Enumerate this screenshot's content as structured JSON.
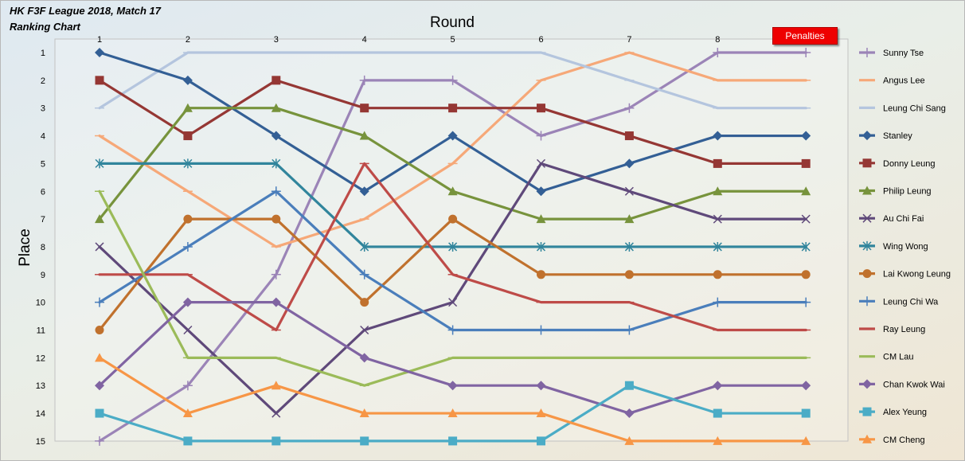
{
  "header": {
    "title": "HK F3F League 2018, Match 17",
    "subtitle": "Ranking Chart"
  },
  "penalties_label": "Penalties",
  "chart_data": {
    "type": "line",
    "xlabel": "Round",
    "ylabel": "Place",
    "x": [
      "1",
      "2",
      "3",
      "4",
      "5",
      "6",
      "7",
      "8",
      ""
    ],
    "xlim": [
      1,
      9
    ],
    "ylim": [
      15,
      1
    ],
    "y_ticks": [
      1,
      2,
      3,
      4,
      5,
      6,
      7,
      8,
      9,
      10,
      11,
      12,
      13,
      14,
      15
    ],
    "y_inverted": true,
    "grid": false,
    "legend_position": "right",
    "series": [
      {
        "name": "Sunny Tse",
        "color": "#9b84b7",
        "marker": "plus",
        "values": [
          15,
          13,
          9,
          2,
          2,
          4,
          3,
          1,
          1
        ]
      },
      {
        "name": "Angus Lee",
        "color": "#f6a878",
        "marker": "dash",
        "values": [
          4,
          6,
          8,
          7,
          5,
          2,
          1,
          2,
          2
        ]
      },
      {
        "name": "Leung Chi Sang",
        "color": "#b4c5de",
        "marker": "dash",
        "values": [
          3,
          1,
          1,
          1,
          1,
          1,
          2,
          3,
          3
        ]
      },
      {
        "name": "Stanley",
        "color": "#335f95",
        "marker": "diamond",
        "values": [
          1,
          2,
          4,
          6,
          4,
          6,
          5,
          4,
          4
        ]
      },
      {
        "name": "Donny Leung",
        "color": "#953734",
        "marker": "square",
        "values": [
          2,
          4,
          2,
          3,
          3,
          3,
          4,
          5,
          5
        ]
      },
      {
        "name": "Philip Leung",
        "color": "#77933c",
        "marker": "triangle",
        "values": [
          7,
          3,
          3,
          4,
          6,
          7,
          7,
          6,
          6
        ]
      },
      {
        "name": "Au Chi Fai",
        "color": "#5f497a",
        "marker": "x",
        "values": [
          8,
          11,
          14,
          11,
          10,
          5,
          6,
          7,
          7
        ]
      },
      {
        "name": "Wing Wong",
        "color": "#31859c",
        "marker": "star",
        "values": [
          5,
          5,
          5,
          8,
          8,
          8,
          8,
          8,
          8
        ]
      },
      {
        "name": "Lai Kwong Leung",
        "color": "#c0712d",
        "marker": "circle",
        "values": [
          11,
          7,
          7,
          10,
          7,
          9,
          9,
          9,
          9
        ]
      },
      {
        "name": "Leung Chi Wa",
        "color": "#4a7ebb",
        "marker": "plus",
        "values": [
          10,
          8,
          6,
          9,
          11,
          11,
          11,
          10,
          10
        ]
      },
      {
        "name": "Ray Leung",
        "color": "#be4b48",
        "marker": "dash",
        "values": [
          9,
          9,
          11,
          5,
          9,
          10,
          10,
          11,
          11
        ]
      },
      {
        "name": "CM Lau",
        "color": "#9bbb59",
        "marker": "dash",
        "values": [
          6,
          12,
          12,
          13,
          12,
          12,
          12,
          12,
          12
        ]
      },
      {
        "name": "Chan Kwok Wai",
        "color": "#8064a2",
        "marker": "diamond",
        "values": [
          13,
          10,
          10,
          12,
          13,
          13,
          14,
          13,
          13
        ]
      },
      {
        "name": "Alex Yeung",
        "color": "#4bacc6",
        "marker": "square",
        "values": [
          14,
          15,
          15,
          15,
          15,
          15,
          13,
          14,
          14
        ]
      },
      {
        "name": "CM Cheng",
        "color": "#f79646",
        "marker": "triangle",
        "values": [
          12,
          14,
          13,
          14,
          14,
          14,
          15,
          15,
          15
        ]
      }
    ]
  }
}
